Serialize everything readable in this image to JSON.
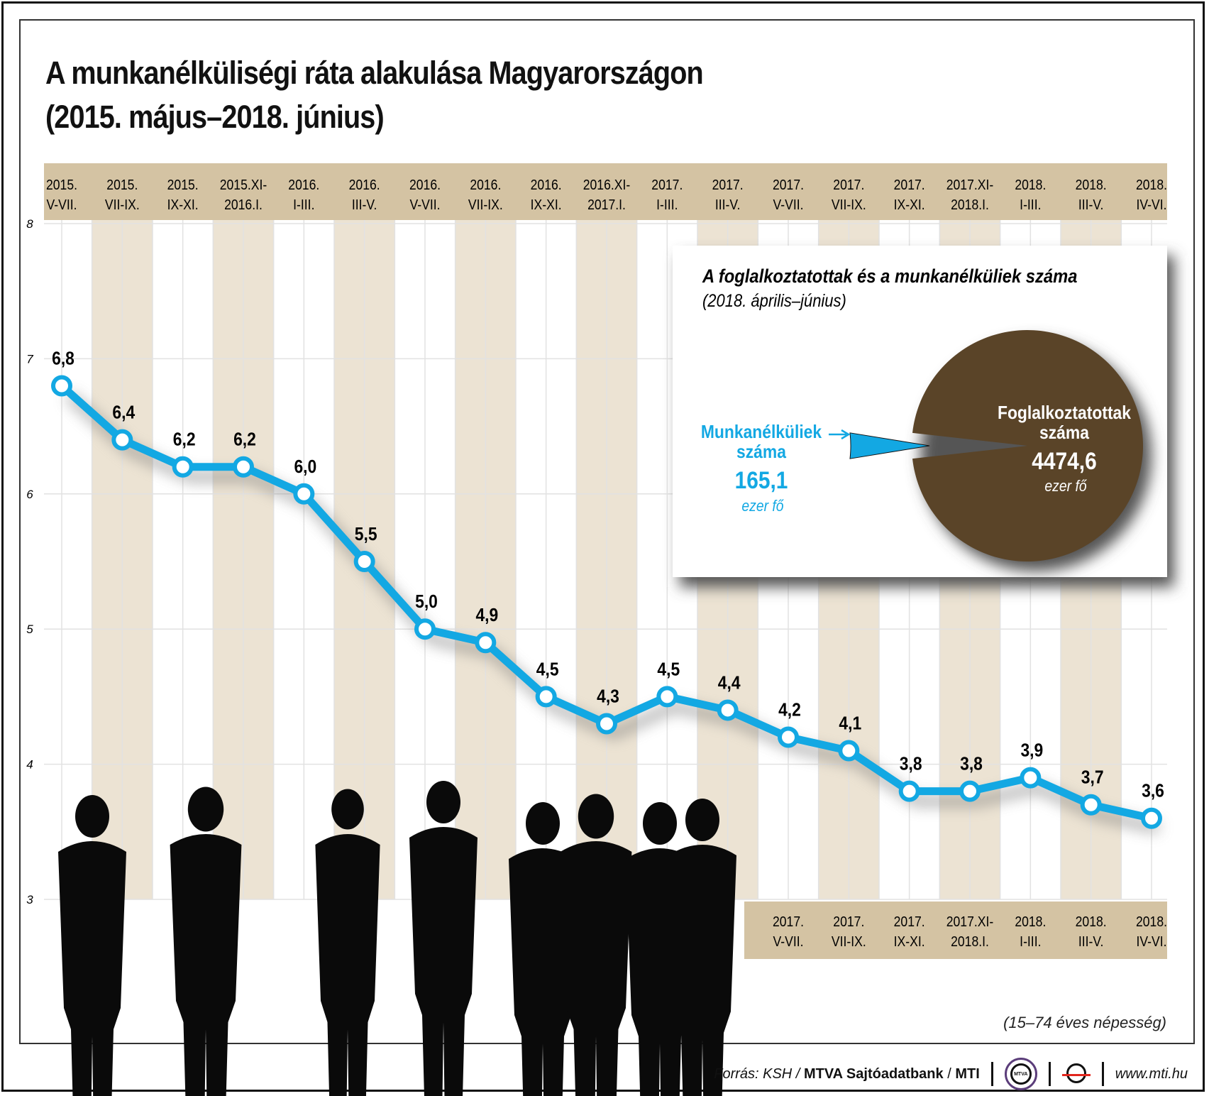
{
  "title_line1": "A munkanélküliségi ráta alakulása Magyarországon",
  "title_line2": "(2015. május–2018. június)",
  "note": "(15–74 éves népesség)",
  "footer": {
    "source_prefix": "Forrás: KSH / ",
    "source_bold": "MTVA Sajtóadatbank",
    "source_sep": " / ",
    "source_mti": "MTI",
    "logo1_text": "MTVA",
    "url": "www.mti.hu"
  },
  "colors": {
    "line": "#13a8e3",
    "band": "#d4c3a3",
    "stripe": "#ece3d3",
    "pie": "#5a4428"
  },
  "chart_data": [
    {
      "type": "line",
      "categories": [
        [
          "2015.",
          "V-VII."
        ],
        [
          "2015.",
          "VII-IX."
        ],
        [
          "2015.",
          "IX-XI."
        ],
        [
          "2015.XI-",
          "2016.I."
        ],
        [
          "2016.",
          "I-III."
        ],
        [
          "2016.",
          "III-V."
        ],
        [
          "2016.",
          "V-VII."
        ],
        [
          "2016.",
          "VII-IX."
        ],
        [
          "2016.",
          "IX-XI."
        ],
        [
          "2016.XI-",
          "2017.I."
        ],
        [
          "2017.",
          "I-III."
        ],
        [
          "2017.",
          "III-V."
        ],
        [
          "2017.",
          "V-VII."
        ],
        [
          "2017.",
          "VII-IX."
        ],
        [
          "2017.",
          "IX-XI."
        ],
        [
          "2017.XI-",
          "2018.I."
        ],
        [
          "2018.",
          "I-III."
        ],
        [
          "2018.",
          "III-V."
        ],
        [
          "2018.",
          "IV-VI."
        ]
      ],
      "values": [
        6.8,
        6.4,
        6.2,
        6.2,
        6.0,
        5.5,
        5.0,
        4.9,
        4.5,
        4.3,
        4.5,
        4.4,
        4.2,
        4.1,
        3.8,
        3.8,
        3.9,
        3.7,
        3.6
      ],
      "data_labels": [
        "6,8",
        "6,4",
        "6,2",
        "6,2",
        "6,0",
        "5,5",
        "5,0",
        "4,9",
        "4,5",
        "4,3",
        "4,5",
        "4,4",
        "4,2",
        "4,1",
        "3,8",
        "3,8",
        "3,9",
        "3,7",
        "3,6"
      ],
      "yticks": [
        "3",
        "4",
        "5",
        "6",
        "7",
        "8"
      ],
      "ylim": [
        3,
        8
      ],
      "grid": true
    },
    {
      "type": "pie",
      "title": "A foglalkoztatottak és a munkanélküliek száma",
      "subtitle": "(2018. április–június)",
      "slices": [
        {
          "name_line1": "Munkanélküliek",
          "name_line2": "száma",
          "value": 165.1,
          "value_label": "165,1",
          "unit": "ezer fő"
        },
        {
          "name_line1": "Foglalkoztatottak",
          "name_line2": "száma",
          "value": 4474.6,
          "value_label": "4474,6",
          "unit": "ezer fő"
        }
      ]
    }
  ]
}
